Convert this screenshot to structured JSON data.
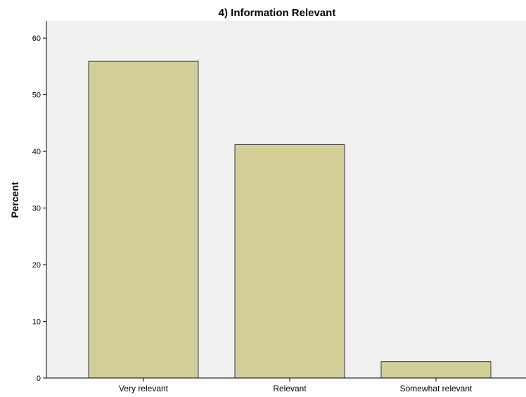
{
  "chart_data": {
    "type": "bar",
    "title": "4) Information Relevant",
    "xlabel": "",
    "ylabel": "Percent",
    "categories": [
      "Very relevant",
      "Relevant",
      "Somewhat relevant"
    ],
    "values": [
      55.9,
      41.2,
      2.9
    ],
    "ylim": [
      0,
      63
    ],
    "yticks": [
      0,
      10,
      20,
      30,
      40,
      50,
      60
    ],
    "grid": false,
    "legend": "none",
    "colors": {
      "bar_fill": "#d3cd97",
      "bar_stroke": "#3a3a3a",
      "plot_background": "#f0f0f0",
      "axis": "#000000"
    }
  }
}
